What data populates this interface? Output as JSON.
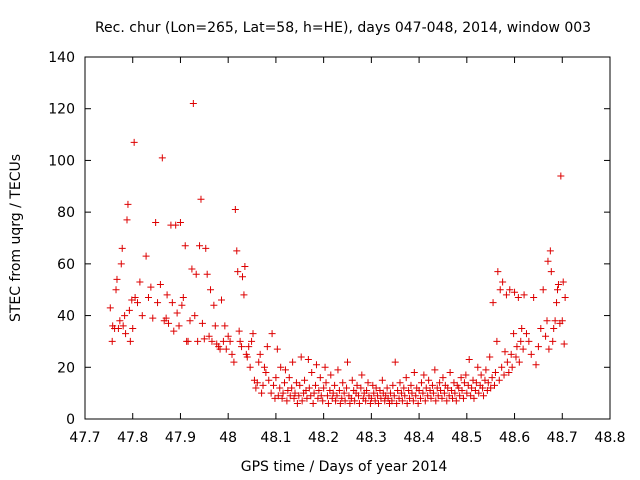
{
  "chart_data": {
    "type": "scatter",
    "title": "Rec. chur (Lon=265, Lat=58, h=HE), days 047-048, 2014, window 003",
    "xlabel": "GPS time / Days of year 2014",
    "ylabel": "STEC from uqrg / TECUs",
    "xlim": [
      47.7,
      48.8
    ],
    "ylim": [
      0,
      140
    ],
    "xticks": [
      "47.7",
      "47.8",
      "47.9",
      "48",
      "48.1",
      "48.2",
      "48.3",
      "48.4",
      "48.5",
      "48.6",
      "48.7",
      "48.8"
    ],
    "yticks": [
      "0",
      "20",
      "40",
      "60",
      "80",
      "100",
      "120",
      "140"
    ],
    "grid": false,
    "legend": "none",
    "marker": "plus",
    "color": "#dd0000",
    "series": [
      {
        "x": [
          47.753,
          47.757,
          47.758,
          47.762,
          47.765,
          47.767,
          47.77,
          47.773,
          47.776,
          47.778,
          47.78,
          47.783,
          47.785,
          47.788,
          47.79,
          47.793,
          47.795,
          47.798,
          47.8,
          47.803,
          47.805,
          47.81,
          47.815,
          47.82,
          47.828,
          47.833,
          47.838,
          47.842,
          47.848,
          47.852,
          47.858,
          47.862,
          47.866,
          47.87,
          47.872,
          47.875,
          47.88,
          47.883,
          47.886,
          47.89,
          47.893,
          47.897,
          47.9,
          47.903,
          47.906,
          47.91,
          47.913,
          47.916,
          47.92,
          47.924,
          47.927,
          47.93,
          47.933,
          47.936,
          47.94,
          47.943,
          47.946,
          47.95,
          47.953,
          47.956,
          47.96,
          47.963,
          47.966,
          47.97,
          47.973,
          47.976,
          47.98,
          47.983,
          47.986,
          47.99,
          47.993,
          47.996,
          48.0,
          48.004,
          48.008,
          48.012,
          48.015,
          48.018,
          48.02,
          48.023,
          48.025,
          48.028,
          48.03,
          48.033,
          48.035,
          48.038,
          48.04,
          48.043,
          48.046,
          48.049,
          48.052,
          48.055,
          48.058,
          48.061,
          48.064,
          48.067,
          48.07,
          48.073,
          48.076,
          48.079,
          48.082,
          48.085
        ],
        "y": [
          43,
          30,
          36,
          35,
          50,
          54,
          35,
          38,
          60,
          66,
          36,
          40,
          33,
          77,
          83,
          42,
          30,
          46,
          35,
          107,
          47,
          45,
          53,
          40,
          63,
          47,
          51,
          39,
          76,
          45,
          52,
          101,
          38,
          39,
          48,
          37,
          75,
          45,
          34,
          75,
          41,
          36,
          76,
          44,
          47,
          67,
          30,
          30,
          38,
          58,
          122,
          40,
          56,
          30,
          67,
          85,
          37,
          31,
          66,
          56,
          32,
          50,
          30,
          44,
          36,
          29,
          28,
          27,
          46,
          30,
          36,
          27,
          32,
          30,
          25,
          22,
          81,
          65,
          57,
          34,
          30,
          28,
          55,
          48,
          59,
          25,
          24,
          28,
          20,
          30,
          33,
          15,
          12,
          14,
          22,
          25,
          10,
          13,
          20,
          18,
          28,
          15
        ]
      },
      {
        "x": [
          48.09,
          48.092,
          48.095,
          48.098,
          48.1,
          48.103,
          48.105,
          48.108,
          48.11,
          48.113,
          48.115,
          48.118,
          48.12,
          48.123,
          48.125,
          48.128,
          48.13,
          48.133,
          48.135,
          48.138,
          48.14,
          48.143,
          48.145,
          48.148,
          48.15,
          48.153,
          48.155,
          48.158,
          48.16,
          48.163,
          48.165,
          48.168,
          48.17,
          48.173,
          48.175,
          48.178,
          48.18,
          48.183,
          48.185,
          48.188,
          48.19,
          48.193,
          48.195,
          48.198,
          48.2,
          48.203,
          48.205,
          48.208,
          48.21,
          48.213,
          48.215,
          48.218,
          48.22,
          48.223,
          48.225,
          48.228,
          48.23,
          48.233,
          48.235,
          48.238,
          48.24,
          48.243,
          48.245,
          48.248,
          48.25,
          48.253,
          48.255,
          48.258,
          48.26,
          48.263,
          48.265,
          48.268,
          48.27,
          48.273,
          48.275,
          48.278,
          48.28,
          48.283,
          48.285,
          48.288,
          48.29,
          48.293,
          48.295,
          48.298,
          48.3,
          48.303,
          48.305,
          48.308,
          48.31,
          48.313,
          48.315,
          48.318,
          48.32,
          48.323,
          48.325,
          48.328,
          48.33,
          48.333,
          48.335,
          48.338
        ],
        "y": [
          10,
          33,
          13,
          8,
          16,
          27,
          9,
          12,
          20,
          8,
          10,
          14,
          19,
          7,
          11,
          16,
          9,
          12,
          22,
          8,
          10,
          14,
          6,
          9,
          13,
          24,
          7,
          10,
          15,
          11,
          8,
          23,
          12,
          9,
          18,
          6,
          10,
          13,
          21,
          8,
          11,
          16,
          9,
          7,
          12,
          20,
          14,
          9,
          6,
          11,
          17,
          8,
          10,
          13,
          7,
          9,
          19,
          11,
          6,
          8,
          14,
          10,
          7,
          12,
          22,
          9,
          6,
          8,
          15,
          11,
          7,
          10,
          13,
          9,
          6,
          12,
          17,
          8,
          10,
          7,
          11,
          14,
          9,
          6,
          8,
          13,
          10,
          7,
          12,
          9,
          6,
          11,
          8,
          15,
          10,
          7,
          9,
          12,
          8,
          6
        ]
      },
      {
        "x": [
          48.34,
          48.343,
          48.345,
          48.348,
          48.35,
          48.353,
          48.355,
          48.358,
          48.36,
          48.363,
          48.365,
          48.368,
          48.37,
          48.373,
          48.375,
          48.378,
          48.38,
          48.383,
          48.385,
          48.388,
          48.39,
          48.393,
          48.395,
          48.398,
          48.4,
          48.403,
          48.405,
          48.408,
          48.41,
          48.413,
          48.415,
          48.418,
          48.42,
          48.423,
          48.425,
          48.428,
          48.43,
          48.433,
          48.435,
          48.438,
          48.44,
          48.443,
          48.445,
          48.448,
          48.45,
          48.453,
          48.455,
          48.458,
          48.46,
          48.463,
          48.465,
          48.468,
          48.47,
          48.473,
          48.475,
          48.478,
          48.48,
          48.483,
          48.485,
          48.488,
          48.49,
          48.493,
          48.495,
          48.498,
          48.5,
          48.503,
          48.505,
          48.508,
          48.51,
          48.513,
          48.515,
          48.518,
          48.52,
          48.523,
          48.525,
          48.528,
          48.53,
          48.533,
          48.535,
          48.538,
          48.54,
          48.543,
          48.545,
          48.548,
          48.55,
          48.553,
          48.555,
          48.558,
          48.56,
          48.563
        ],
        "y": [
          10,
          7,
          13,
          9,
          22,
          6,
          11,
          8,
          14,
          10,
          7,
          12,
          9,
          16,
          6,
          11,
          8,
          13,
          10,
          7,
          18,
          9,
          12,
          6,
          11,
          8,
          14,
          10,
          17,
          7,
          12,
          9,
          15,
          11,
          8,
          13,
          10,
          19,
          7,
          12,
          9,
          14,
          11,
          8,
          16,
          10,
          13,
          7,
          12,
          9,
          18,
          11,
          8,
          14,
          10,
          7,
          13,
          12,
          9,
          16,
          11,
          8,
          14,
          17,
          10,
          13,
          23,
          9,
          12,
          15,
          8,
          11,
          14,
          20,
          10,
          13,
          17,
          12,
          9,
          15,
          19,
          11,
          14,
          24,
          12,
          16,
          45,
          13,
          18,
          30
        ]
      },
      {
        "x": [
          48.565,
          48.568,
          48.57,
          48.573,
          48.575,
          48.578,
          48.58,
          48.583,
          48.585,
          48.588,
          48.59,
          48.593,
          48.595,
          48.598,
          48.6,
          48.603,
          48.605,
          48.608,
          48.61,
          48.613,
          48.615,
          48.618,
          48.62,
          48.625,
          48.63,
          48.635,
          48.64,
          48.645,
          48.65,
          48.655,
          48.66,
          48.665,
          48.668,
          48.67,
          48.672,
          48.675,
          48.677,
          48.68,
          48.682,
          48.685,
          48.688,
          48.69,
          48.692,
          48.695,
          48.697,
          48.7,
          48.702,
          48.704,
          48.706
        ],
        "y": [
          57,
          15,
          50,
          20,
          53,
          17,
          26,
          48,
          22,
          18,
          50,
          25,
          20,
          33,
          49,
          24,
          28,
          47,
          22,
          30,
          35,
          27,
          48,
          33,
          30,
          25,
          47,
          21,
          28,
          35,
          50,
          32,
          38,
          61,
          27,
          65,
          57,
          30,
          35,
          38,
          45,
          50,
          52,
          37,
          94,
          38,
          53,
          29,
          47
        ]
      }
    ]
  }
}
